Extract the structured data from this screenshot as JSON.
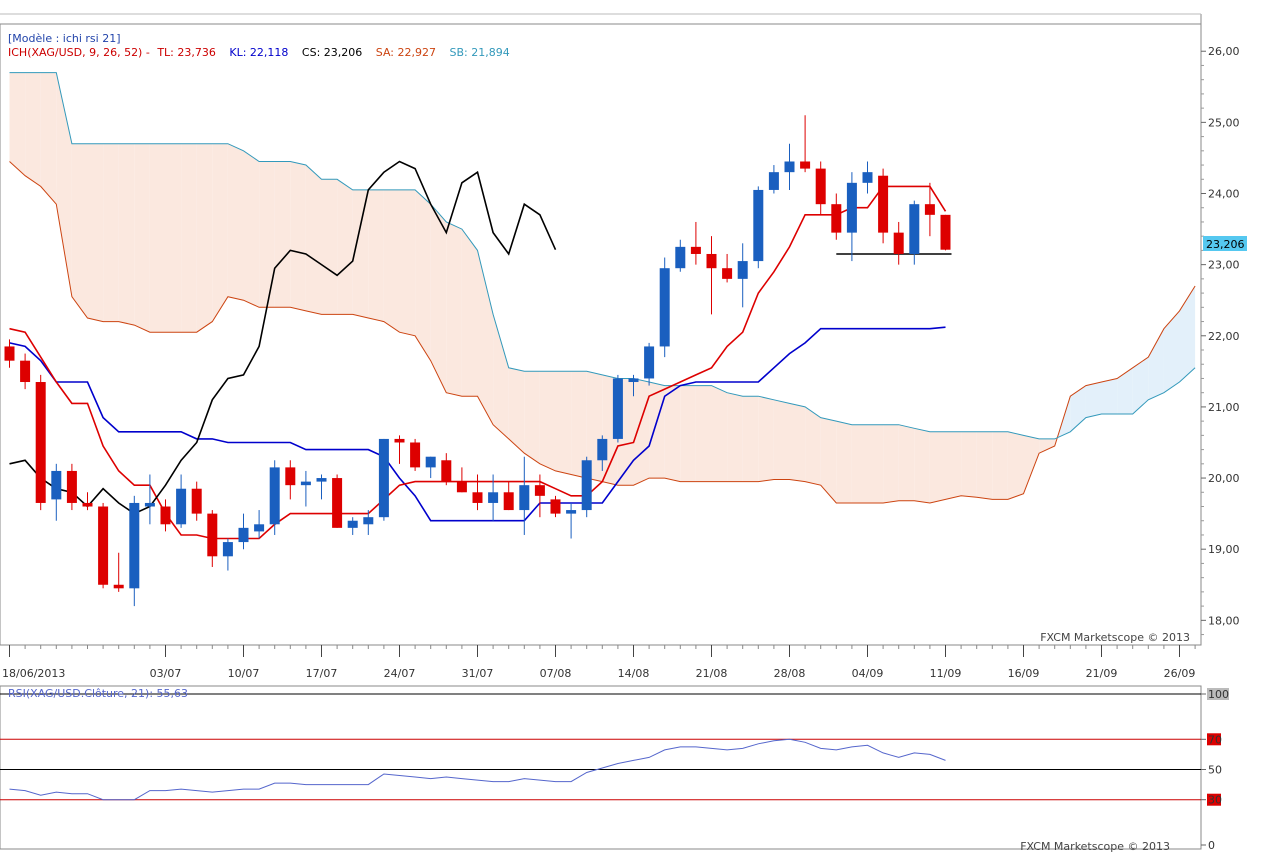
{
  "header": {
    "model_label": "[Modèle : ichi rsi 21]",
    "ind_name": "ICH(XAG/USD, 9, 26, 52) - ",
    "tl": "TL: 23,736",
    "kl": "KL: 22,118",
    "cs": "CS: 23,206",
    "sa": "SA: 22,927",
    "sb": "SB: 21,894"
  },
  "watermark": "FXCM Marketscope © 2013",
  "watermark_rsi": "FXCM Marketscope © 2013",
  "last_price_label": "23,206",
  "rsi_label": "RSI(XAG/USD.Clôture, 21): 55,63",
  "colors": {
    "bull": "#1a5fbf",
    "bear": "#dd0000",
    "tenkan": "#dd0000",
    "kijun": "#0000cc",
    "chikou": "#000000",
    "senkou_a": "#cc4411",
    "senkou_b": "#3399bb",
    "cloud_bear": "#fbe8df",
    "cloud_bull": "#e3f0fa",
    "rsi": "#5566cc",
    "rsi_level": "#cc0000"
  },
  "chart_data": [
    {
      "type": "candlestick",
      "instrument": "XAG/USD",
      "indicator": "ICH(XAG/USD, 9, 26, 52)",
      "ylim": [
        17.85,
        26.2
      ],
      "y_ticks": [
        "26,00",
        "25,00",
        "24,00",
        "23,00",
        "22,00",
        "21,00",
        "20,00",
        "19,00",
        "18,00"
      ],
      "x_ticks": [
        {
          "label": "18/06/2013",
          "i": 0
        },
        {
          "label": "03/07",
          "i": 10
        },
        {
          "label": "10/07",
          "i": 15
        },
        {
          "label": "17/07",
          "i": 20
        },
        {
          "label": "24/07",
          "i": 25
        },
        {
          "label": "31/07",
          "i": 30
        },
        {
          "label": "07/08",
          "i": 35
        },
        {
          "label": "14/08",
          "i": 40
        },
        {
          "label": "21/08",
          "i": 45
        },
        {
          "label": "28/08",
          "i": 50
        },
        {
          "label": "04/09",
          "i": 55
        },
        {
          "label": "11/09",
          "i": 60
        },
        {
          "label": "16/09",
          "i": 65
        },
        {
          "label": "21/09",
          "i": 70
        },
        {
          "label": "26/09",
          "i": 75
        }
      ],
      "candles": [
        {
          "o": 21.85,
          "h": 21.95,
          "l": 21.55,
          "c": 21.65
        },
        {
          "o": 21.65,
          "h": 21.75,
          "l": 21.25,
          "c": 21.35
        },
        {
          "o": 21.35,
          "h": 21.45,
          "l": 19.55,
          "c": 19.65
        },
        {
          "o": 19.7,
          "h": 20.2,
          "l": 19.4,
          "c": 20.1
        },
        {
          "o": 20.1,
          "h": 20.2,
          "l": 19.55,
          "c": 19.65
        },
        {
          "o": 19.65,
          "h": 19.8,
          "l": 19.55,
          "c": 19.6
        },
        {
          "o": 19.6,
          "h": 19.65,
          "l": 18.45,
          "c": 18.5
        },
        {
          "o": 18.5,
          "h": 18.95,
          "l": 18.4,
          "c": 18.45
        },
        {
          "o": 18.45,
          "h": 19.75,
          "l": 18.2,
          "c": 19.65
        },
        {
          "o": 19.6,
          "h": 20.05,
          "l": 19.35,
          "c": 19.65
        },
        {
          "o": 19.6,
          "h": 19.7,
          "l": 19.25,
          "c": 19.35
        },
        {
          "o": 19.35,
          "h": 20.05,
          "l": 19.3,
          "c": 19.85
        },
        {
          "o": 19.85,
          "h": 19.95,
          "l": 19.4,
          "c": 19.5
        },
        {
          "o": 19.5,
          "h": 19.55,
          "l": 18.75,
          "c": 18.9
        },
        {
          "o": 18.9,
          "h": 19.15,
          "l": 18.7,
          "c": 19.1
        },
        {
          "o": 19.1,
          "h": 19.5,
          "l": 19.0,
          "c": 19.3
        },
        {
          "o": 19.25,
          "h": 19.55,
          "l": 19.15,
          "c": 19.35
        },
        {
          "o": 19.35,
          "h": 20.25,
          "l": 19.2,
          "c": 20.15
        },
        {
          "o": 20.15,
          "h": 20.25,
          "l": 19.7,
          "c": 19.9
        },
        {
          "o": 19.9,
          "h": 20.1,
          "l": 19.6,
          "c": 19.95
        },
        {
          "o": 19.95,
          "h": 20.05,
          "l": 19.7,
          "c": 20.0
        },
        {
          "o": 20.0,
          "h": 20.05,
          "l": 19.3,
          "c": 19.3
        },
        {
          "o": 19.3,
          "h": 19.45,
          "l": 19.2,
          "c": 19.4
        },
        {
          "o": 19.35,
          "h": 19.55,
          "l": 19.2,
          "c": 19.45
        },
        {
          "o": 19.45,
          "h": 20.55,
          "l": 19.4,
          "c": 20.55
        },
        {
          "o": 20.55,
          "h": 20.6,
          "l": 20.2,
          "c": 20.5
        },
        {
          "o": 20.5,
          "h": 20.55,
          "l": 20.1,
          "c": 20.15
        },
        {
          "o": 20.15,
          "h": 20.3,
          "l": 20.0,
          "c": 20.3
        },
        {
          "o": 20.25,
          "h": 20.35,
          "l": 19.9,
          "c": 19.95
        },
        {
          "o": 19.95,
          "h": 20.15,
          "l": 19.8,
          "c": 19.8
        },
        {
          "o": 19.8,
          "h": 20.05,
          "l": 19.55,
          "c": 19.65
        },
        {
          "o": 19.65,
          "h": 20.05,
          "l": 19.4,
          "c": 19.8
        },
        {
          "o": 19.8,
          "h": 19.95,
          "l": 19.55,
          "c": 19.55
        },
        {
          "o": 19.55,
          "h": 20.3,
          "l": 19.2,
          "c": 19.9
        },
        {
          "o": 19.9,
          "h": 20.05,
          "l": 19.45,
          "c": 19.75
        },
        {
          "o": 19.7,
          "h": 19.75,
          "l": 19.45,
          "c": 19.5
        },
        {
          "o": 19.5,
          "h": 19.65,
          "l": 19.15,
          "c": 19.55
        },
        {
          "o": 19.55,
          "h": 20.3,
          "l": 19.45,
          "c": 20.25
        },
        {
          "o": 20.25,
          "h": 20.6,
          "l": 20.1,
          "c": 20.55
        },
        {
          "o": 20.55,
          "h": 21.45,
          "l": 20.5,
          "c": 21.4
        },
        {
          "o": 21.35,
          "h": 21.45,
          "l": 21.15,
          "c": 21.4
        },
        {
          "o": 21.4,
          "h": 21.9,
          "l": 21.3,
          "c": 21.85
        },
        {
          "o": 21.85,
          "h": 23.1,
          "l": 21.7,
          "c": 22.95
        },
        {
          "o": 22.95,
          "h": 23.35,
          "l": 22.9,
          "c": 23.25
        },
        {
          "o": 23.25,
          "h": 23.6,
          "l": 23.0,
          "c": 23.15
        },
        {
          "o": 23.15,
          "h": 23.4,
          "l": 22.3,
          "c": 22.95
        },
        {
          "o": 22.95,
          "h": 23.15,
          "l": 22.75,
          "c": 22.8
        },
        {
          "o": 22.8,
          "h": 23.3,
          "l": 22.4,
          "c": 23.05
        },
        {
          "o": 23.05,
          "h": 24.1,
          "l": 22.95,
          "c": 24.05
        },
        {
          "o": 24.05,
          "h": 24.4,
          "l": 24.0,
          "c": 24.3
        },
        {
          "o": 24.3,
          "h": 24.7,
          "l": 24.05,
          "c": 24.45
        },
        {
          "o": 24.45,
          "h": 25.1,
          "l": 24.3,
          "c": 24.35
        },
        {
          "o": 24.35,
          "h": 24.45,
          "l": 23.7,
          "c": 23.85
        },
        {
          "o": 23.85,
          "h": 24.0,
          "l": 23.35,
          "c": 23.45
        },
        {
          "o": 23.45,
          "h": 24.3,
          "l": 23.05,
          "c": 24.15
        },
        {
          "o": 24.15,
          "h": 24.45,
          "l": 24.0,
          "c": 24.3
        },
        {
          "o": 24.25,
          "h": 24.35,
          "l": 23.3,
          "c": 23.45
        },
        {
          "o": 23.45,
          "h": 23.6,
          "l": 23.0,
          "c": 23.15
        },
        {
          "o": 23.15,
          "h": 23.9,
          "l": 23.0,
          "c": 23.85
        },
        {
          "o": 23.85,
          "h": 24.15,
          "l": 23.4,
          "c": 23.7
        },
        {
          "o": 23.7,
          "h": 23.7,
          "l": 23.2,
          "c": 23.21
        }
      ],
      "tenkan": [
        22.1,
        22.05,
        21.7,
        21.35,
        21.05,
        21.05,
        20.45,
        20.1,
        19.9,
        19.9,
        19.5,
        19.2,
        19.2,
        19.15,
        19.15,
        19.15,
        19.15,
        19.35,
        19.5,
        19.5,
        19.5,
        19.5,
        19.5,
        19.5,
        19.7,
        19.9,
        19.95,
        19.95,
        19.95,
        19.95,
        19.95,
        19.95,
        19.95,
        19.95,
        19.95,
        19.85,
        19.75,
        19.75,
        19.95,
        20.45,
        20.5,
        21.15,
        21.25,
        21.35,
        21.45,
        21.55,
        21.85,
        22.05,
        22.6,
        22.9,
        23.25,
        23.7,
        23.7,
        23.7,
        23.8,
        23.8,
        24.1,
        24.1,
        24.1,
        24.1,
        23.75
      ],
      "kijun": [
        21.9,
        21.85,
        21.65,
        21.35,
        21.35,
        21.35,
        20.85,
        20.65,
        20.65,
        20.65,
        20.65,
        20.65,
        20.55,
        20.55,
        20.5,
        20.5,
        20.5,
        20.5,
        20.5,
        20.4,
        20.4,
        20.4,
        20.4,
        20.4,
        20.3,
        20.0,
        19.75,
        19.4,
        19.4,
        19.4,
        19.4,
        19.4,
        19.4,
        19.4,
        19.65,
        19.65,
        19.65,
        19.65,
        19.65,
        19.95,
        20.25,
        20.45,
        21.15,
        21.3,
        21.35,
        21.35,
        21.35,
        21.35,
        21.35,
        21.55,
        21.75,
        21.9,
        22.1,
        22.1,
        22.1,
        22.1,
        22.1,
        22.1,
        22.1,
        22.1,
        22.12
      ],
      "senkou_a": [
        24.45,
        24.25,
        24.1,
        23.85,
        22.55,
        22.25,
        22.2,
        22.2,
        22.15,
        22.05,
        22.05,
        22.05,
        22.05,
        22.2,
        22.55,
        22.5,
        22.4,
        22.4,
        22.4,
        22.35,
        22.3,
        22.3,
        22.3,
        22.25,
        22.2,
        22.05,
        22.0,
        21.65,
        21.2,
        21.15,
        21.15,
        20.75,
        20.55,
        20.35,
        20.2,
        20.1,
        20.05,
        20.0,
        19.95,
        19.9,
        19.9,
        20.0,
        20.0,
        19.95,
        19.95,
        19.95,
        19.95,
        19.95,
        19.95,
        19.98,
        19.98,
        19.95,
        19.9,
        19.65,
        19.65,
        19.65,
        19.65,
        19.68,
        19.68,
        19.65,
        19.7,
        19.75,
        19.73,
        19.7,
        19.7,
        19.78,
        20.35,
        20.45,
        21.15,
        21.3,
        21.35,
        21.4,
        21.55,
        21.7,
        22.1,
        22.35,
        22.7
      ],
      "senkou_b": [
        25.7,
        25.7,
        25.7,
        25.7,
        24.7,
        24.7,
        24.7,
        24.7,
        24.7,
        24.7,
        24.7,
        24.7,
        24.7,
        24.7,
        24.7,
        24.6,
        24.45,
        24.45,
        24.45,
        24.4,
        24.2,
        24.2,
        24.05,
        24.05,
        24.05,
        24.05,
        24.05,
        23.85,
        23.6,
        23.5,
        23.2,
        22.3,
        21.55,
        21.5,
        21.5,
        21.5,
        21.5,
        21.5,
        21.45,
        21.4,
        21.4,
        21.35,
        21.3,
        21.3,
        21.3,
        21.3,
        21.2,
        21.15,
        21.15,
        21.1,
        21.05,
        21.0,
        20.85,
        20.8,
        20.75,
        20.75,
        20.75,
        20.75,
        20.7,
        20.65,
        20.65,
        20.65,
        20.65,
        20.65,
        20.65,
        20.6,
        20.55,
        20.55,
        20.65,
        20.85,
        20.9,
        20.9,
        20.9,
        21.1,
        21.2,
        21.35,
        21.55
      ],
      "chikou": [
        20.2,
        20.25,
        20.0,
        19.85,
        19.8,
        19.6,
        19.85,
        19.65,
        19.5,
        19.6,
        19.9,
        20.25,
        20.5,
        21.1,
        21.4,
        21.45,
        21.85,
        22.95,
        23.2,
        23.15,
        23.0,
        22.85,
        23.05,
        24.05,
        24.3,
        24.45,
        24.35,
        23.85,
        23.45,
        24.15,
        24.3,
        23.45,
        23.15,
        23.85,
        23.7,
        23.21
      ],
      "horizontal_level": {
        "value": 23.15,
        "from_i": 53,
        "to_i": 60
      },
      "last_price": 23.206
    },
    {
      "type": "line",
      "title": "RSI(XAG/USD.Clôture, 21): 55,63",
      "ylim": [
        0,
        100
      ],
      "y_ticks": [
        "100",
        "70",
        "50",
        "30",
        "0"
      ],
      "levels": [
        {
          "value": 70,
          "color": "red"
        },
        {
          "value": 50,
          "color": "black"
        },
        {
          "value": 30,
          "color": "red"
        }
      ],
      "values": [
        37,
        36,
        33,
        35,
        34,
        34,
        30,
        30,
        30,
        36,
        36,
        37,
        36,
        35,
        36,
        37,
        37,
        41,
        41,
        40,
        40,
        40,
        40,
        40,
        47,
        46,
        45,
        44,
        45,
        44,
        43,
        42,
        42,
        44,
        43,
        42,
        42,
        48,
        51,
        54,
        56,
        58,
        63,
        65,
        65,
        64,
        63,
        64,
        67,
        69,
        70,
        68,
        64,
        63,
        65,
        66,
        61,
        58,
        61,
        60,
        56
      ]
    }
  ]
}
